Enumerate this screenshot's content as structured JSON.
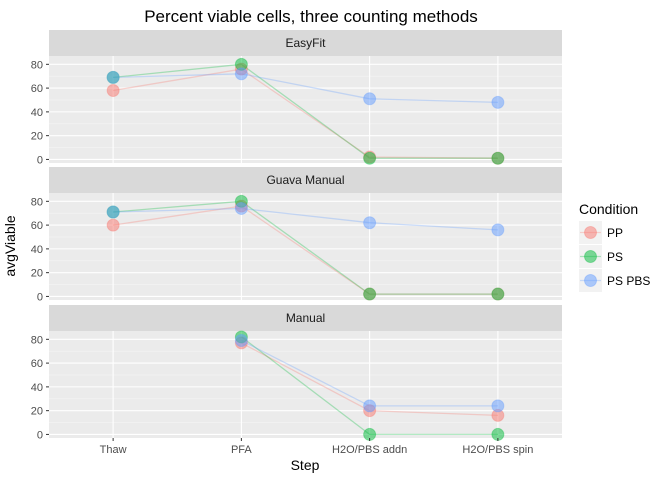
{
  "chart_data": {
    "type": "line",
    "title": "Percent viable cells, three counting methods",
    "xlabel": "Step",
    "ylabel": "avgViable",
    "categories": [
      "Thaw",
      "PFA",
      "H2O/PBS addn",
      "H2O/PBS spin"
    ],
    "ylim": [
      -3,
      87
    ],
    "yticks": [
      0,
      20,
      40,
      60,
      80
    ],
    "grid": true,
    "legend": {
      "title": "Condition",
      "position": "right",
      "entries": [
        "PP",
        "PS",
        "PS PBS"
      ]
    },
    "colors": {
      "PP": "#F8766D",
      "PS": "#00BA38",
      "PS PBS": "#619CFF"
    },
    "panels": [
      {
        "label": "EasyFit",
        "series": [
          {
            "name": "PP",
            "values": [
              58,
              76,
              2,
              1
            ]
          },
          {
            "name": "PS",
            "values": [
              69,
              80,
              1,
              1
            ]
          },
          {
            "name": "PS PBS",
            "values": [
              69,
              72,
              51,
              48
            ]
          }
        ]
      },
      {
        "label": "Guava Manual",
        "series": [
          {
            "name": "PP",
            "values": [
              60,
              76,
              2,
              2
            ]
          },
          {
            "name": "PS",
            "values": [
              71,
              80,
              2,
              2
            ]
          },
          {
            "name": "PS PBS",
            "values": [
              71,
              74,
              62,
              56
            ]
          }
        ]
      },
      {
        "label": "Manual",
        "series": [
          {
            "name": "PP",
            "values": [
              null,
              77,
              20,
              16
            ]
          },
          {
            "name": "PS",
            "values": [
              null,
              82,
              0,
              0
            ]
          },
          {
            "name": "PS PBS",
            "values": [
              null,
              79,
              24,
              24
            ]
          }
        ]
      }
    ]
  }
}
